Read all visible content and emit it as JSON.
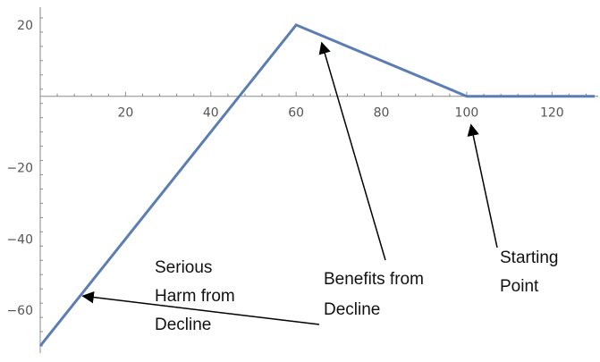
{
  "chart_data": {
    "type": "line",
    "series": [
      {
        "x": [
          0,
          60,
          100,
          130
        ],
        "values": [
          -70,
          20,
          0,
          0
        ]
      }
    ],
    "xlim": [
      0,
      130
    ],
    "ylim": [
      -72,
      25
    ],
    "x_ticks": [
      20,
      40,
      60,
      80,
      100,
      120
    ],
    "y_ticks": [
      20,
      -20,
      -40,
      -60
    ],
    "grid": false,
    "colors": {
      "series": "#5b7db3",
      "axis": "#8a8a8a",
      "annotation": "#000000"
    },
    "annotations": [
      {
        "lines": [
          "Serious",
          "Harm from",
          "Decline"
        ],
        "point": [
          10,
          -56
        ]
      },
      {
        "lines": [
          "Benefits from",
          "Decline"
        ],
        "point": [
          66,
          15
        ]
      },
      {
        "lines": [
          "Starting",
          "Point"
        ],
        "point": [
          101,
          -8
        ]
      }
    ]
  }
}
